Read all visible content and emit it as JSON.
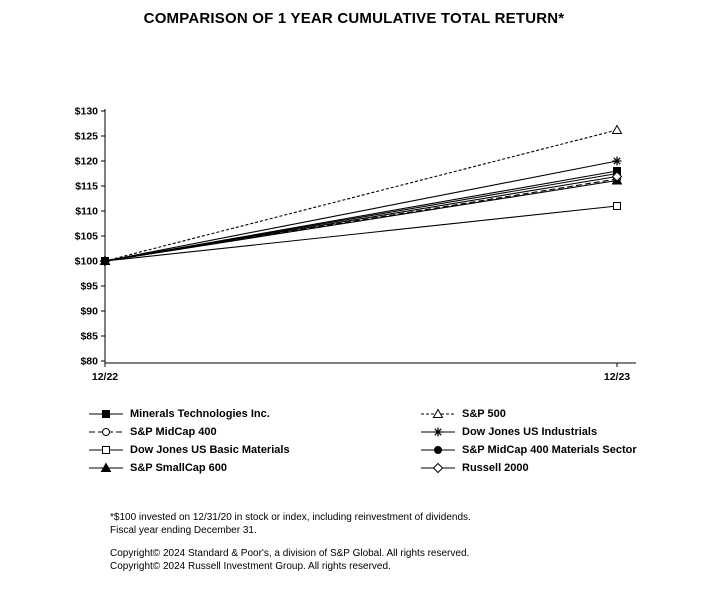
{
  "title": "COMPARISON OF 1 YEAR CUMULATIVE TOTAL RETURN*",
  "chart_data": {
    "type": "line",
    "x_labels": [
      "12/22",
      "12/23"
    ],
    "ylim": [
      80,
      130
    ],
    "yticks": [
      80,
      85,
      90,
      95,
      100,
      105,
      110,
      115,
      120,
      125,
      130
    ],
    "ytick_labels": [
      "$80",
      "$85",
      "$90",
      "$95",
      "$100",
      "$105",
      "$110",
      "$115",
      "$120",
      "$125",
      "$130"
    ],
    "grid": false,
    "legend_position": "below",
    "line_color": "#000000",
    "series": [
      {
        "name": "Minerals Technologies Inc.",
        "values": [
          100,
          118.0
        ],
        "marker": "square",
        "filled": true,
        "dash": "solid"
      },
      {
        "name": "S&P 500",
        "values": [
          100,
          126.2
        ],
        "marker": "triangle",
        "filled": false,
        "dash": "dotted"
      },
      {
        "name": "S&P MidCap 400",
        "values": [
          100,
          116.4
        ],
        "marker": "circle",
        "filled": false,
        "dash": "dashed"
      },
      {
        "name": "Dow Jones US Industrials",
        "values": [
          100,
          120.0
        ],
        "marker": "asterisk",
        "filled": false,
        "dash": "solid"
      },
      {
        "name": "Dow Jones US Basic Materials",
        "values": [
          100,
          111.0
        ],
        "marker": "square",
        "filled": false,
        "dash": "solid"
      },
      {
        "name": "S&P MidCap 400 Materials Sector",
        "values": [
          100,
          117.5
        ],
        "marker": "circle",
        "filled": true,
        "dash": "solid"
      },
      {
        "name": "S&P SmallCap 600",
        "values": [
          100,
          116.1
        ],
        "marker": "triangle",
        "filled": true,
        "dash": "solid"
      },
      {
        "name": "Russell 2000",
        "values": [
          100,
          116.9
        ],
        "marker": "diamond",
        "filled": false,
        "dash": "solid"
      }
    ]
  },
  "footnotes": [
    "*$100 invested on 12/31/20 in stock or index, including reinvestment of dividends.",
    "Fiscal year ending December 31."
  ],
  "copyrights": [
    "Copyright© 2024 Standard & Poor's, a division of S&P Global. All rights reserved.",
    "Copyright© 2024 Russell Investment Group. All rights reserved."
  ]
}
